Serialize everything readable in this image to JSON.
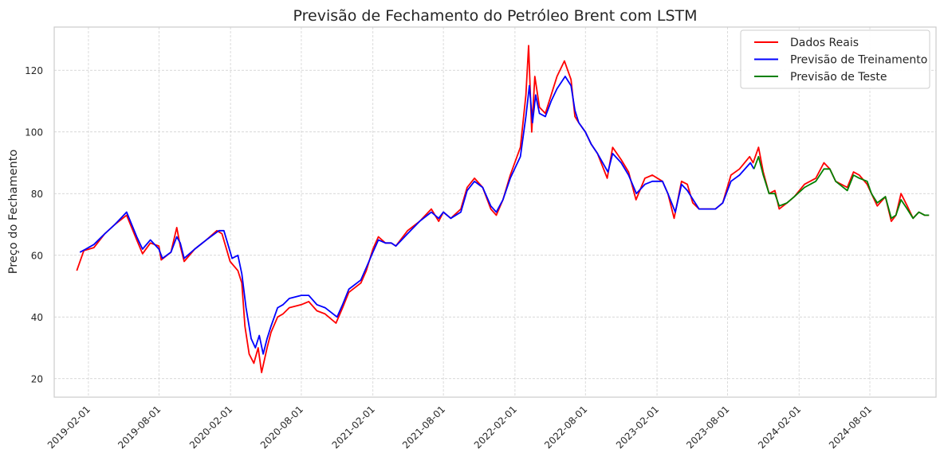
{
  "chart_data": {
    "type": "line",
    "title": "Previsão de Fechamento do Petróleo Brent com LSTM",
    "xlabel": "",
    "ylabel": "Preço do Fechamento",
    "x_range": [
      "2018-11-05",
      "2025-01-18"
    ],
    "ylim": [
      14,
      134
    ],
    "x_ticks": [
      "2019-02-01",
      "2019-08-01",
      "2020-02-01",
      "2020-08-01",
      "2021-02-01",
      "2021-08-01",
      "2022-02-01",
      "2022-08-01",
      "2023-02-01",
      "2023-08-01",
      "2024-02-01",
      "2024-08-01"
    ],
    "y_ticks": [
      20,
      40,
      60,
      80,
      100,
      120
    ],
    "grid": true,
    "legend_position": "top-right",
    "series": [
      {
        "name": "Dados Reais",
        "color": "#ff0000",
        "x": [
          "2019-01-02",
          "2019-01-20",
          "2019-02-15",
          "2019-03-15",
          "2019-04-10",
          "2019-04-25",
          "2019-05-10",
          "2019-06-05",
          "2019-06-20",
          "2019-07-10",
          "2019-08-01",
          "2019-08-07",
          "2019-09-01",
          "2019-09-16",
          "2019-09-25",
          "2019-10-05",
          "2019-11-01",
          "2019-12-01",
          "2019-12-28",
          "2020-01-10",
          "2020-01-31",
          "2020-02-20",
          "2020-03-01",
          "2020-03-09",
          "2020-03-20",
          "2020-04-01",
          "2020-04-12",
          "2020-04-21",
          "2020-05-05",
          "2020-05-15",
          "2020-06-01",
          "2020-06-15",
          "2020-07-01",
          "2020-08-01",
          "2020-08-20",
          "2020-09-10",
          "2020-10-01",
          "2020-10-29",
          "2020-11-15",
          "2020-12-01",
          "2021-01-01",
          "2021-01-15",
          "2021-02-01",
          "2021-02-15",
          "2021-03-05",
          "2021-03-20",
          "2021-04-01",
          "2021-05-01",
          "2021-06-01",
          "2021-07-01",
          "2021-07-20",
          "2021-08-01",
          "2021-08-20",
          "2021-09-15",
          "2021-10-01",
          "2021-10-20",
          "2021-11-10",
          "2021-12-01",
          "2021-12-15",
          "2022-01-01",
          "2022-01-20",
          "2022-02-15",
          "2022-03-01",
          "2022-03-08",
          "2022-03-16",
          "2022-03-24",
          "2022-04-05",
          "2022-04-20",
          "2022-05-05",
          "2022-05-20",
          "2022-06-08",
          "2022-06-25",
          "2022-07-05",
          "2022-07-15",
          "2022-08-01",
          "2022-08-16",
          "2022-09-01",
          "2022-09-26",
          "2022-10-10",
          "2022-11-01",
          "2022-11-20",
          "2022-12-09",
          "2023-01-01",
          "2023-01-20",
          "2023-02-15",
          "2023-03-01",
          "2023-03-17",
          "2023-04-05",
          "2023-04-20",
          "2023-05-04",
          "2023-05-20",
          "2023-06-12",
          "2023-07-01",
          "2023-07-20",
          "2023-08-10",
          "2023-09-01",
          "2023-09-27",
          "2023-10-06",
          "2023-10-20",
          "2023-11-01",
          "2023-11-16",
          "2023-12-01",
          "2023-12-12",
          "2024-01-01",
          "2024-01-20",
          "2024-02-15",
          "2024-03-15",
          "2024-04-05",
          "2024-04-20",
          "2024-05-05",
          "2024-06-04",
          "2024-06-20",
          "2024-07-05",
          "2024-07-25",
          "2024-08-05",
          "2024-08-20",
          "2024-09-10",
          "2024-09-25",
          "2024-10-07",
          "2024-10-20",
          "2024-11-05",
          "2024-11-20",
          "2024-12-05",
          "2024-12-20",
          "2024-12-31"
        ],
        "values": [
          55,
          61.5,
          62.5,
          67,
          70,
          71.5,
          73,
          65,
          60.5,
          64,
          63,
          58.5,
          61,
          69,
          63,
          58,
          62,
          65,
          68,
          67,
          58,
          55,
          51,
          37,
          28,
          25,
          30,
          22,
          30,
          35,
          40,
          41,
          43,
          44,
          45,
          42,
          41,
          38,
          43,
          48,
          51,
          55,
          62,
          66,
          64,
          64,
          63,
          68,
          71,
          75,
          71,
          74,
          72,
          75,
          82,
          85,
          82,
          75,
          73,
          78,
          86,
          95,
          112,
          128,
          100,
          118,
          108,
          106,
          112,
          118,
          123,
          117,
          105,
          103,
          100,
          96,
          93,
          85,
          95,
          91,
          87,
          78,
          85,
          86,
          84,
          80,
          72,
          84,
          83,
          77,
          75,
          75,
          75,
          77,
          86,
          88,
          92,
          90,
          95,
          87,
          80,
          81,
          75,
          77,
          79,
          83,
          85,
          90,
          88,
          84,
          82,
          87,
          86,
          83,
          80,
          76,
          79,
          71,
          73,
          80,
          76,
          72,
          74,
          73,
          73
        ]
      },
      {
        "name": "Previsão de Treinamento",
        "color": "#0000ff",
        "x": [
          "2019-01-10",
          "2019-01-25",
          "2019-02-15",
          "2019-03-15",
          "2019-04-10",
          "2019-04-25",
          "2019-05-10",
          "2019-06-05",
          "2019-06-20",
          "2019-07-10",
          "2019-08-01",
          "2019-08-10",
          "2019-09-01",
          "2019-09-16",
          "2019-09-25",
          "2019-10-05",
          "2019-11-01",
          "2019-12-01",
          "2020-01-02",
          "2020-01-15",
          "2020-02-05",
          "2020-02-20",
          "2020-03-01",
          "2020-03-12",
          "2020-03-25",
          "2020-04-05",
          "2020-04-15",
          "2020-04-25",
          "2020-05-05",
          "2020-05-15",
          "2020-06-01",
          "2020-06-15",
          "2020-07-01",
          "2020-08-01",
          "2020-08-20",
          "2020-09-10",
          "2020-10-01",
          "2020-11-01",
          "2020-11-15",
          "2020-12-01",
          "2021-01-01",
          "2021-01-15",
          "2021-02-01",
          "2021-02-15",
          "2021-03-05",
          "2021-03-20",
          "2021-04-01",
          "2021-05-01",
          "2021-06-01",
          "2021-07-01",
          "2021-07-20",
          "2021-08-01",
          "2021-08-20",
          "2021-09-15",
          "2021-10-01",
          "2021-10-20",
          "2021-11-10",
          "2021-12-01",
          "2021-12-15",
          "2022-01-01",
          "2022-01-20",
          "2022-02-15",
          "2022-03-01",
          "2022-03-10",
          "2022-03-18",
          "2022-03-26",
          "2022-04-05",
          "2022-04-20",
          "2022-05-05",
          "2022-05-20",
          "2022-06-10",
          "2022-06-25",
          "2022-07-05",
          "2022-07-15",
          "2022-08-01",
          "2022-08-16",
          "2022-09-01",
          "2022-09-28",
          "2022-10-10",
          "2022-11-01",
          "2022-11-20",
          "2022-12-10",
          "2023-01-01",
          "2023-01-20",
          "2023-02-15",
          "2023-03-01",
          "2023-03-20",
          "2023-04-05",
          "2023-04-20",
          "2023-05-05",
          "2023-05-20",
          "2023-06-12",
          "2023-07-01",
          "2023-07-20",
          "2023-08-10",
          "2023-09-01",
          "2023-09-29",
          "2023-10-08"
        ],
        "values": [
          61,
          62,
          63.5,
          67,
          70,
          72,
          74,
          66,
          62,
          65,
          62,
          59,
          61,
          66,
          64,
          59,
          62,
          65,
          68,
          68,
          59,
          60,
          54,
          43,
          33,
          30,
          34,
          28,
          33,
          37,
          43,
          44,
          46,
          47,
          47,
          44,
          43,
          40,
          44,
          49,
          52,
          56,
          61,
          65,
          64,
          64,
          63,
          67,
          71,
          74,
          72,
          74,
          72,
          74,
          81,
          84,
          82,
          76,
          74,
          78,
          85,
          92,
          105,
          115,
          103,
          112,
          106,
          105,
          110,
          114,
          118,
          115,
          107,
          103,
          100,
          96,
          93,
          87,
          93,
          90,
          86,
          80,
          83,
          84,
          84,
          80,
          74,
          83,
          81,
          78,
          75,
          75,
          75,
          77,
          84,
          86,
          90,
          88
        ]
      },
      {
        "name": "Previsão de Teste",
        "color": "#008000",
        "x": [
          "2023-10-08",
          "2023-10-20",
          "2023-11-01",
          "2023-11-16",
          "2023-12-01",
          "2023-12-12",
          "2024-01-01",
          "2024-01-20",
          "2024-02-15",
          "2024-03-15",
          "2024-04-05",
          "2024-04-20",
          "2024-05-05",
          "2024-06-04",
          "2024-06-20",
          "2024-07-05",
          "2024-07-25",
          "2024-08-05",
          "2024-08-20",
          "2024-09-10",
          "2024-09-25",
          "2024-10-07",
          "2024-10-20",
          "2024-11-05",
          "2024-11-20",
          "2024-12-05",
          "2024-12-20",
          "2024-12-31"
        ],
        "values": [
          88,
          92,
          86,
          80,
          80,
          76,
          77,
          79,
          82,
          84,
          88,
          88,
          84,
          81,
          86,
          85,
          84,
          80,
          77,
          79,
          72,
          73,
          78,
          75,
          72,
          74,
          73,
          73
        ]
      }
    ]
  }
}
